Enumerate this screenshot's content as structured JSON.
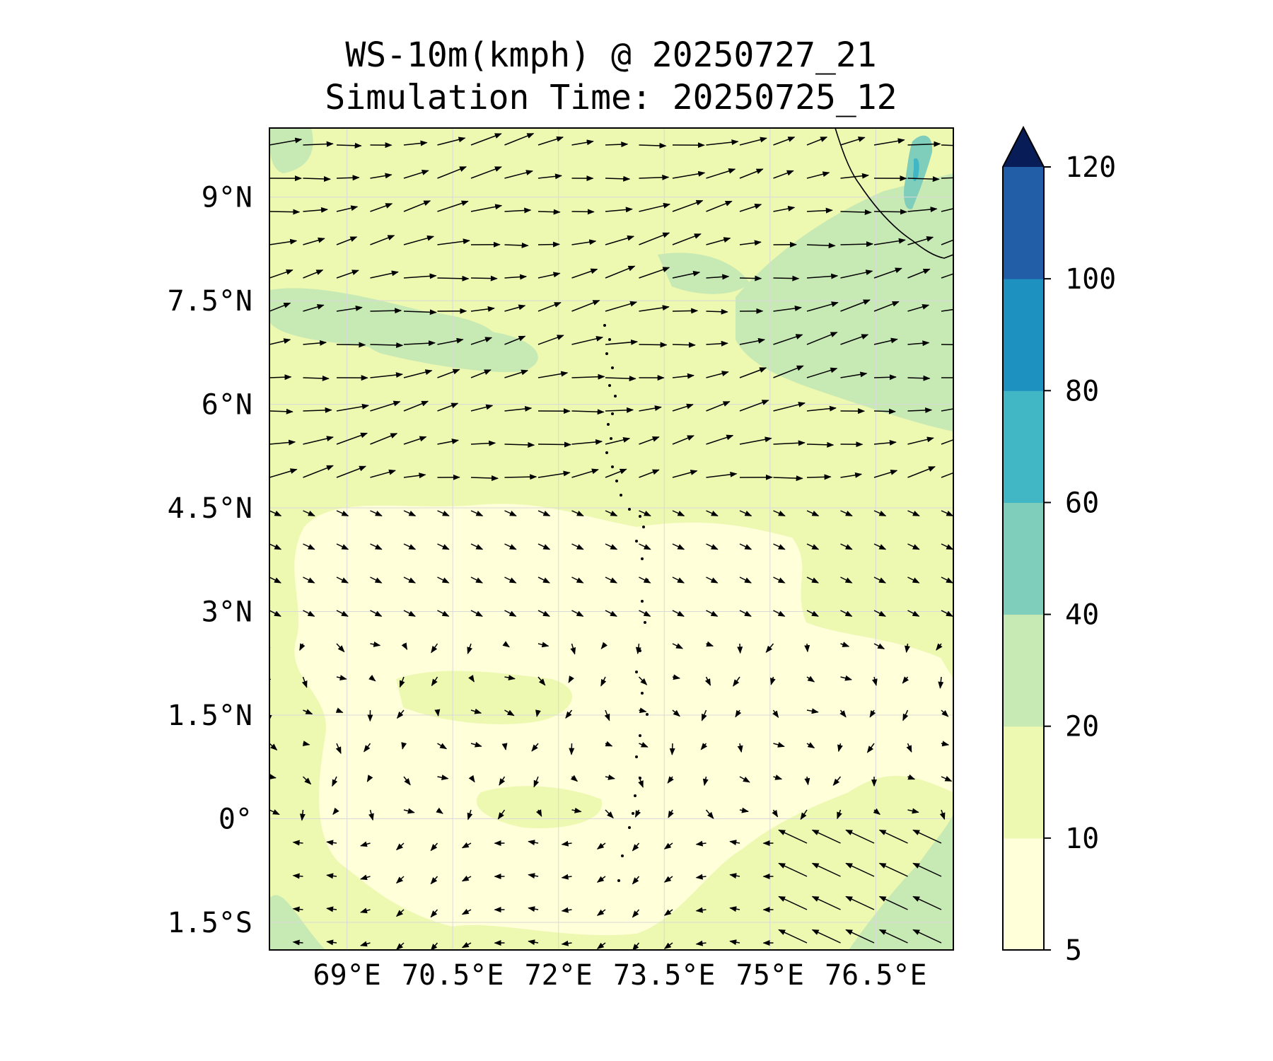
{
  "title": {
    "line1": "WS-10m(kmph) @ 20250727_21",
    "line2": "Simulation Time: 20250725_12"
  },
  "map": {
    "lon_range": [
      67.9,
      77.6
    ],
    "lat_range": [
      -1.9,
      10.0
    ],
    "lat_ticks": [
      {
        "value": 9.0,
        "label": "9°N"
      },
      {
        "value": 7.5,
        "label": "7.5°N"
      },
      {
        "value": 6.0,
        "label": "6°N"
      },
      {
        "value": 4.5,
        "label": "4.5°N"
      },
      {
        "value": 3.0,
        "label": "3°N"
      },
      {
        "value": 1.5,
        "label": "1.5°N"
      },
      {
        "value": 0.0,
        "label": "0°"
      },
      {
        "value": -1.5,
        "label": "1.5°S"
      }
    ],
    "lon_ticks": [
      {
        "value": 69.0,
        "label": "69°E"
      },
      {
        "value": 70.5,
        "label": "70.5°E"
      },
      {
        "value": 72.0,
        "label": "72°E"
      },
      {
        "value": 73.5,
        "label": "73.5°E"
      },
      {
        "value": 75.0,
        "label": "75°E"
      },
      {
        "value": 76.5,
        "label": "76.5°E"
      }
    ],
    "gridlines": true,
    "coastline": "Sri Lanka / southern India coast in top-right corner; Maldives atoll chain dotted along 73.5°E",
    "vector_field": "10 m wind arrows: westerly in north, calm in centre, north-westward in south-east"
  },
  "colorbar": {
    "levels": [
      5,
      10,
      20,
      40,
      60,
      80,
      100,
      120
    ],
    "labels": [
      "5",
      "10",
      "20",
      "40",
      "60",
      "80",
      "100",
      "120"
    ],
    "colors": [
      "#ffffd9",
      "#edf8b1",
      "#c7e9b4",
      "#7fcdbb",
      "#41b6c4",
      "#1d91c0",
      "#225ea8",
      "#253494"
    ],
    "extend_color": "#081d58",
    "extend": "max"
  }
}
